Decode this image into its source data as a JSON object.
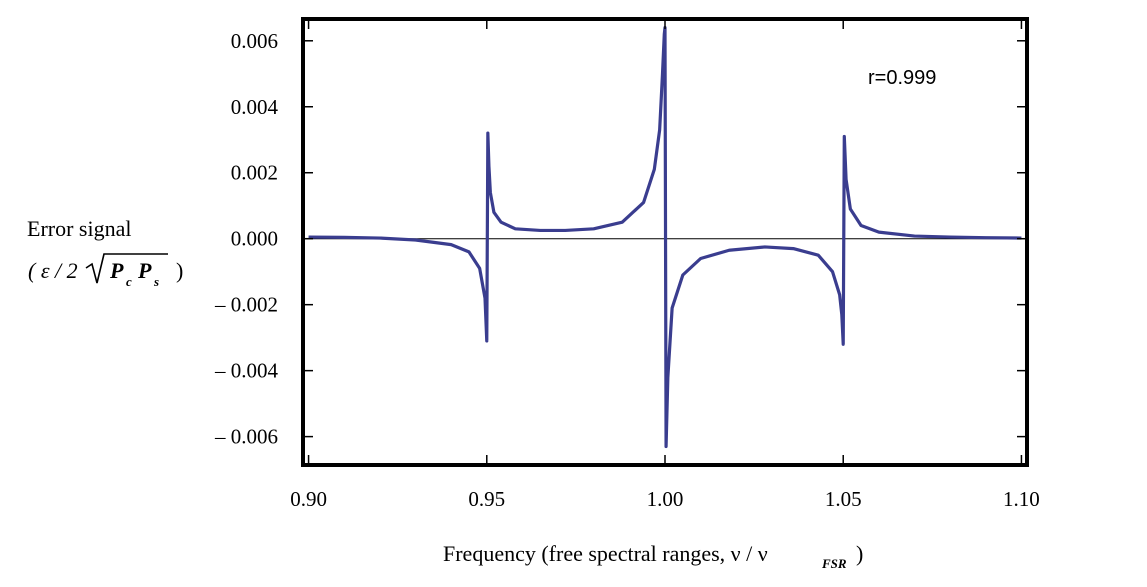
{
  "chart_data": {
    "type": "line",
    "title": "",
    "xlabel": "Frequency (free spectral ranges, ν / ν",
    "xlabel_sub": "FSR",
    "xlabel_close": " )",
    "ylabel_line1": "Error signal",
    "ylabel_line2_open": "( ε / 2",
    "ylabel_line2_P1": "P",
    "ylabel_line2_sub1": "c",
    "ylabel_line2_P2": "P",
    "ylabel_line2_sub2": "s",
    "ylabel_line2_close": ")",
    "annotation": "r=0.999",
    "xlim": [
      0.899,
      1.101
    ],
    "ylim": [
      -0.0068,
      0.0066
    ],
    "xticks": [
      0.9,
      0.95,
      1.0,
      1.05,
      1.1
    ],
    "xtick_labels": [
      "0.90",
      "0.95",
      "1.00",
      "1.05",
      "1.10"
    ],
    "yticks": [
      0.006,
      0.004,
      0.002,
      0.0,
      -0.002,
      -0.004,
      -0.006
    ],
    "ytick_labels": [
      "0.006",
      "0.004",
      "0.002",
      "0.000",
      "– 0.002",
      "– 0.004",
      "– 0.006"
    ],
    "grid": false,
    "series": [
      {
        "name": "error signal",
        "color": "#3a3d8f",
        "x": [
          0.9,
          0.91,
          0.92,
          0.93,
          0.94,
          0.945,
          0.948,
          0.9495,
          0.95,
          0.9503,
          0.9506,
          0.951,
          0.952,
          0.954,
          0.958,
          0.965,
          0.972,
          0.98,
          0.988,
          0.994,
          0.997,
          0.9985,
          0.9993,
          0.9998,
          1.0,
          1.0003,
          1.0008,
          1.002,
          1.005,
          1.01,
          1.018,
          1.028,
          1.036,
          1.043,
          1.047,
          1.049,
          1.0496,
          1.05,
          1.0503,
          1.0508,
          1.052,
          1.055,
          1.06,
          1.07,
          1.08,
          1.09,
          1.1
        ],
        "y": [
          5e-05,
          4e-05,
          2e-05,
          -4e-05,
          -0.00018,
          -0.0004,
          -0.0009,
          -0.0018,
          -0.0031,
          0.0032,
          0.0022,
          0.0014,
          0.0008,
          0.0005,
          0.0003,
          0.00025,
          0.00025,
          0.0003,
          0.0005,
          0.0011,
          0.0021,
          0.0033,
          0.005,
          0.0062,
          0.0064,
          -0.0063,
          -0.0042,
          -0.0021,
          -0.0011,
          -0.0006,
          -0.00035,
          -0.00025,
          -0.0003,
          -0.0005,
          -0.001,
          -0.0017,
          -0.0023,
          -0.0032,
          0.0031,
          0.0018,
          0.0009,
          0.0004,
          0.0002,
          8e-05,
          5e-05,
          3e-05,
          2e-05
        ]
      }
    ]
  }
}
